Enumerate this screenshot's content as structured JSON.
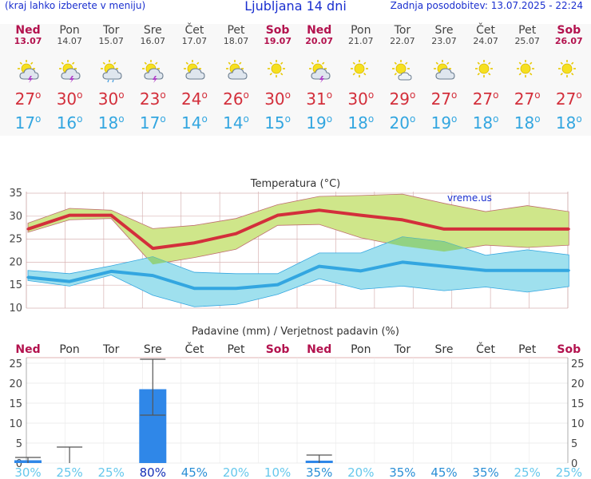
{
  "header": {
    "menu_hint": "(kraj lahko izberete v meniju)",
    "title": "Ljubljana 14 dni",
    "updated": "Zadnja posodobitev: 13.07.2025 - 22:24"
  },
  "forecast_days": [
    {
      "name": "Ned",
      "date": "13.07",
      "weekend": true,
      "icon": "thunderstorm-icon",
      "max": "27",
      "min": "17"
    },
    {
      "name": "Pon",
      "date": "14.07",
      "weekend": false,
      "icon": "thunderstorm-icon",
      "max": "30",
      "min": "16"
    },
    {
      "name": "Tor",
      "date": "15.07",
      "weekend": false,
      "icon": "rain-cloud-icon",
      "max": "30",
      "min": "18"
    },
    {
      "name": "Sre",
      "date": "16.07",
      "weekend": false,
      "icon": "thunderstorm-icon",
      "max": "23",
      "min": "17"
    },
    {
      "name": "Čet",
      "date": "17.07",
      "weekend": false,
      "icon": "partly-cloudy-icon",
      "max": "24",
      "min": "14"
    },
    {
      "name": "Pet",
      "date": "18.07",
      "weekend": false,
      "icon": "partly-cloudy-icon",
      "max": "26",
      "min": "14"
    },
    {
      "name": "Sob",
      "date": "19.07",
      "weekend": true,
      "icon": "sun-icon",
      "max": "30",
      "min": "15"
    },
    {
      "name": "Ned",
      "date": "20.07",
      "weekend": true,
      "icon": "thunderstorm-icon",
      "max": "31",
      "min": "19"
    },
    {
      "name": "Pon",
      "date": "21.07",
      "weekend": false,
      "icon": "sun-icon",
      "max": "30",
      "min": "18"
    },
    {
      "name": "Tor",
      "date": "22.07",
      "weekend": false,
      "icon": "sun-cloud-icon",
      "max": "29",
      "min": "20"
    },
    {
      "name": "Sre",
      "date": "23.07",
      "weekend": false,
      "icon": "partly-cloudy-icon",
      "max": "27",
      "min": "19"
    },
    {
      "name": "Čet",
      "date": "24.07",
      "weekend": false,
      "icon": "sun-icon",
      "max": "27",
      "min": "18"
    },
    {
      "name": "Pet",
      "date": "25.07",
      "weekend": false,
      "icon": "sun-icon",
      "max": "27",
      "min": "18"
    },
    {
      "name": "Sob",
      "date": "26.07",
      "weekend": true,
      "icon": "sun-icon",
      "max": "27",
      "min": "18"
    }
  ],
  "colors": {
    "max_line": "#d32f3b",
    "max_band": "#cfe68a",
    "min_line": "#33a6e0",
    "min_band": "#9fe0ee",
    "overlap": "#8fcf6e",
    "bar": "#2f87e8",
    "weekend_text": "#b3124e",
    "text_blue": "#1a2fcf"
  },
  "chart_data": [
    {
      "type": "line",
      "title": "Temperatura (°C)",
      "watermark": "vreme.us",
      "categories": [
        "Ned",
        "Pon",
        "Tor",
        "Sre",
        "Čet",
        "Pet",
        "Sob",
        "Ned",
        "Pon",
        "Tor",
        "Sre",
        "Čet",
        "Pet",
        "Sob"
      ],
      "ylim": [
        10,
        35
      ],
      "yticks": [
        "35",
        "30",
        "25",
        "20",
        "15",
        "10"
      ],
      "series": [
        {
          "name": "max",
          "values": [
            27.2,
            30.2,
            30.2,
            23.0,
            24.2,
            26.2,
            30.2,
            31.3,
            30.2,
            29.2,
            27.2,
            27.2,
            27.2,
            27.2
          ]
        },
        {
          "name": "max_upper",
          "values": [
            28.5,
            31.7,
            31.3,
            27.3,
            28.0,
            29.5,
            32.5,
            34.3,
            34.5,
            34.8,
            32.8,
            31.0,
            32.3,
            31.0
          ]
        },
        {
          "name": "max_lower",
          "values": [
            26.5,
            29.2,
            29.5,
            19.5,
            21.0,
            22.8,
            28.0,
            28.2,
            25.3,
            23.5,
            22.3,
            23.7,
            23.2,
            23.7
          ]
        },
        {
          "name": "min",
          "values": [
            16.7,
            15.8,
            18.0,
            17.1,
            14.3,
            14.3,
            15.1,
            19.1,
            18.1,
            20.0,
            19.1,
            18.2,
            18.2,
            18.2
          ]
        },
        {
          "name": "min_upper",
          "values": [
            18.2,
            17.5,
            19.2,
            21.2,
            17.8,
            17.5,
            17.5,
            22.0,
            22.0,
            25.5,
            24.5,
            21.5,
            22.7,
            21.6
          ]
        },
        {
          "name": "min_lower",
          "values": [
            16.0,
            14.8,
            17.2,
            12.8,
            10.3,
            10.8,
            13.0,
            16.4,
            14.1,
            14.8,
            13.8,
            14.6,
            13.5,
            14.7
          ]
        }
      ]
    },
    {
      "type": "bar",
      "title": "Padavine (mm) / Verjetnost padavin (%)",
      "categories": [
        "Ned",
        "Pon",
        "Tor",
        "Sre",
        "Čet",
        "Pet",
        "Sob",
        "Ned",
        "Pon",
        "Tor",
        "Sre",
        "Čet",
        "Pet",
        "Sob"
      ],
      "ylim": [
        0,
        26
      ],
      "yticks": [
        "25",
        "20",
        "15",
        "10",
        "5",
        "0"
      ],
      "values": [
        0.7,
        0,
        0,
        18.5,
        0,
        0,
        0,
        0.6,
        0,
        0,
        0,
        0,
        0,
        0
      ],
      "error_high": [
        1.4,
        4.0,
        0,
        26.0,
        0,
        0,
        0,
        2.0,
        0,
        0,
        0,
        0,
        0,
        0
      ],
      "error_low": [
        0,
        0,
        0,
        12.0,
        0,
        0,
        0,
        0,
        0,
        0,
        0,
        0,
        0,
        0
      ],
      "probability": [
        "30%",
        "25%",
        "25%",
        "80%",
        "45%",
        "20%",
        "10%",
        "35%",
        "20%",
        "35%",
        "45%",
        "35%",
        "25%",
        "25%"
      ],
      "probability_values": [
        30,
        25,
        25,
        80,
        45,
        20,
        10,
        35,
        20,
        35,
        45,
        35,
        25,
        25
      ]
    }
  ]
}
